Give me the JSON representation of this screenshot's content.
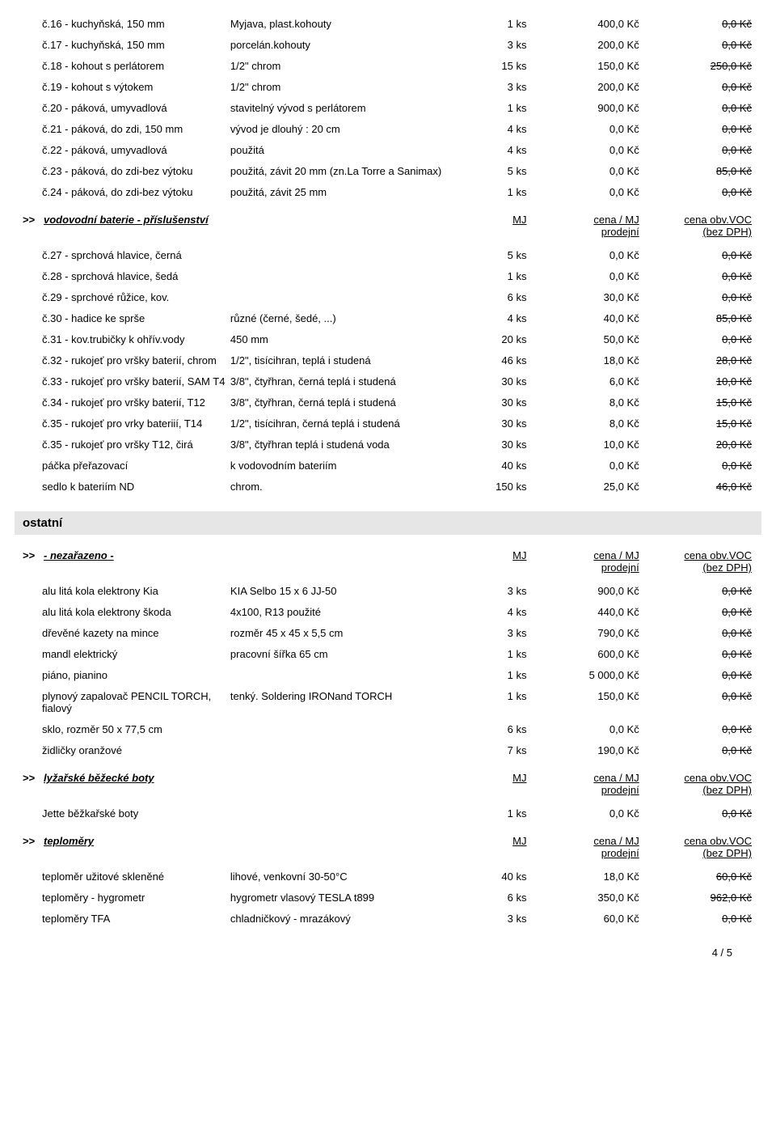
{
  "labels": {
    "marker": ">>",
    "mj": "MJ",
    "price_hdr_l1": "cena / MJ",
    "price_hdr_l2": "prodejní",
    "voc_hdr_l1": "cena obv.VOC",
    "voc_hdr_l2": "(bez DPH)"
  },
  "section1": {
    "rows": [
      {
        "p": "č.16 - kuchyňská, 150 mm",
        "d": "Myjava, plast.kohouty",
        "mj": "1 ks",
        "pr": "400,0 Kč",
        "voc": "0,0 Kč"
      },
      {
        "p": "č.17 - kuchyňská, 150 mm",
        "d": "porcelán.kohouty",
        "mj": "3 ks",
        "pr": "200,0 Kč",
        "voc": "0,0 Kč"
      },
      {
        "p": "č.18 - kohout s perlátorem",
        "d": "1/2\" chrom",
        "mj": "15 ks",
        "pr": "150,0 Kč",
        "voc": "250,0 Kč"
      },
      {
        "p": "č.19 - kohout s výtokem",
        "d": "1/2\" chrom",
        "mj": "3 ks",
        "pr": "200,0 Kč",
        "voc": "0,0 Kč"
      },
      {
        "p": "č.20 - páková, umyvadlová",
        "d": "stavitelný vývod s perlátorem",
        "mj": "1 ks",
        "pr": "900,0 Kč",
        "voc": "0,0 Kč"
      },
      {
        "p": "č.21 - páková, do zdi, 150 mm",
        "d": "vývod je dlouhý : 20 cm",
        "mj": "4 ks",
        "pr": "0,0 Kč",
        "voc": "0,0 Kč"
      },
      {
        "p": "č.22 - páková, umyvadlová",
        "d": "použitá",
        "mj": "4 ks",
        "pr": "0,0 Kč",
        "voc": "0,0 Kč"
      },
      {
        "p": "č.23 - páková, do zdi-bez výtoku",
        "d": "použitá, závit 20 mm (zn.La Torre a Sanimax)",
        "mj": "5 ks",
        "pr": "0,0 Kč",
        "voc": "85,0 Kč"
      },
      {
        "p": "č.24 - páková, do zdi-bez výtoku",
        "d": "použitá, závit 25 mm",
        "mj": "1 ks",
        "pr": "0,0 Kč",
        "voc": "0,0 Kč"
      }
    ],
    "header": "vodovodní baterie - příslušenství",
    "rows2": [
      {
        "p": "č.27 - sprchová hlavice, černá",
        "d": "",
        "mj": "5 ks",
        "pr": "0,0 Kč",
        "voc": "0,0 Kč"
      },
      {
        "p": "č.28 - sprchová hlavice, šedá",
        "d": "",
        "mj": "1 ks",
        "pr": "0,0 Kč",
        "voc": "0,0 Kč"
      },
      {
        "p": "č.29 - sprchové růžice, kov.",
        "d": "",
        "mj": "6 ks",
        "pr": "30,0 Kč",
        "voc": "0,0 Kč"
      },
      {
        "p": "č.30 - hadice ke sprše",
        "d": "různé (černé, šedé, ...)",
        "mj": "4 ks",
        "pr": "40,0 Kč",
        "voc": "85,0 Kč"
      },
      {
        "p": "č.31 - kov.trubičky k ohřív.vody",
        "d": "450 mm",
        "mj": "20 ks",
        "pr": "50,0 Kč",
        "voc": "0,0 Kč"
      },
      {
        "p": "č.32 - rukojeť pro vršky  baterií, chrom",
        "d": "1/2\", tisícihran, teplá i studená",
        "mj": "46 ks",
        "pr": "18,0 Kč",
        "voc": "28,0 Kč"
      },
      {
        "p": "č.33 - rukojeť pro vršky baterií, SAM T4",
        "d": "3/8\", čtyřhran, černá teplá i studená",
        "mj": "30 ks",
        "pr": "6,0 Kč",
        "voc": "10,0 Kč"
      },
      {
        "p": "č.34 - rukojeť  pro vršky baterií, T12",
        "d": "3/8\", čtyřhran, černá teplá i studená",
        "mj": "30 ks",
        "pr": "8,0 Kč",
        "voc": "15,0 Kč"
      },
      {
        "p": "č.35 - rukojeť pro vrky bateriií, T14",
        "d": "1/2\", tisícihran, černá teplá i studená",
        "mj": "30 ks",
        "pr": "8,0 Kč",
        "voc": "15,0 Kč"
      },
      {
        "p": "č.35 - rukojeť pro vršky T12, čirá",
        "d": "3/8\", čtyřhran teplá i studená voda",
        "mj": "30 ks",
        "pr": "10,0 Kč",
        "voc": "20,0 Kč"
      },
      {
        "p": "páčka přeřazovací",
        "d": "k vodovodním bateriím",
        "mj": "40 ks",
        "pr": "0,0 Kč",
        "voc": "0,0 Kč"
      },
      {
        "p": "sedlo k bateriím ND",
        "d": "chrom.",
        "mj": "150 ks",
        "pr": "25,0 Kč",
        "voc": "46,0 Kč"
      }
    ]
  },
  "band": "ostatní",
  "section2": {
    "header": "-  nezařazeno  -",
    "rows": [
      {
        "p": "alu litá kola elektrony Kia",
        "d": "KIA Selbo 15 x 6 JJ-50",
        "mj": "3 ks",
        "pr": "900,0 Kč",
        "voc": "0,0 Kč"
      },
      {
        "p": "alu litá kola elektrony škoda",
        "d": "4x100, R13 použité",
        "mj": "4 ks",
        "pr": "440,0 Kč",
        "voc": "0,0 Kč"
      },
      {
        "p": "dřevěné kazety na mince",
        "d": "rozměr  45 x 45 x 5,5 cm",
        "mj": "3 ks",
        "pr": "790,0 Kč",
        "voc": "0,0 Kč"
      },
      {
        "p": "mandl elektrický",
        "d": "pracovní šířka 65 cm",
        "mj": "1 ks",
        "pr": "600,0 Kč",
        "voc": "0,0 Kč"
      },
      {
        "p": "piáno, pianino",
        "d": "",
        "mj": "1 ks",
        "pr": "5 000,0 Kč",
        "voc": "0,0 Kč"
      },
      {
        "p": "plynový zapalovač  PENCIL TORCH, fialový",
        "d": "tenký.  Soldering IRONand TORCH",
        "mj": "1 ks",
        "pr": "150,0 Kč",
        "voc": "0,0 Kč"
      },
      {
        "p": "sklo, rozměr 50 x 77,5 cm",
        "d": "",
        "mj": "6 ks",
        "pr": "0,0 Kč",
        "voc": "0,0 Kč"
      },
      {
        "p": "židličky oranžové",
        "d": "",
        "mj": "7 ks",
        "pr": "190,0 Kč",
        "voc": "0,0 Kč"
      }
    ]
  },
  "section3": {
    "header": "lyžařské běžecké boty",
    "rows": [
      {
        "p": "Jette běžkařské boty",
        "d": "",
        "mj": "1 ks",
        "pr": "0,0 Kč",
        "voc": "0,0 Kč"
      }
    ]
  },
  "section4": {
    "header": "teploměry",
    "rows": [
      {
        "p": "teploměr užitové skleněné",
        "d": "lihové, venkovní 30-50°C",
        "mj": "40 ks",
        "pr": "18,0 Kč",
        "voc": "60,0 Kč"
      },
      {
        "p": "teploměry - hygrometr",
        "d": "hygrometr vlasový TESLA t899",
        "mj": "6 ks",
        "pr": "350,0 Kč",
        "voc": "962,0 Kč"
      },
      {
        "p": "teploměry TFA",
        "d": "chladničkový - mrazákový",
        "mj": "3 ks",
        "pr": "60,0 Kč",
        "voc": "0,0 Kč"
      }
    ]
  },
  "footer": "4  /  5"
}
